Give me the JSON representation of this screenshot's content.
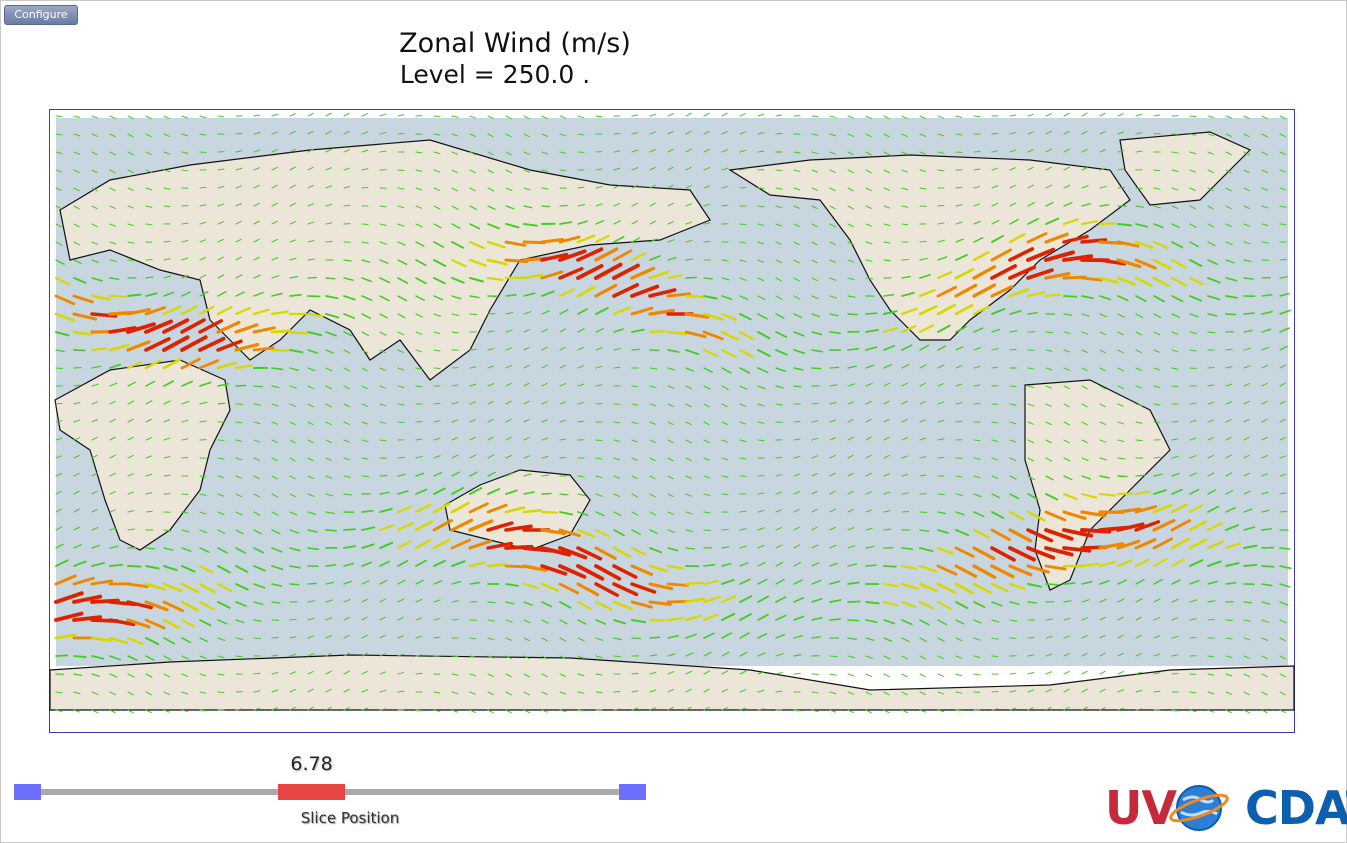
{
  "toolbar": {
    "configure_label": "Configure"
  },
  "plot": {
    "title": "Zonal Wind (m/s)",
    "level_text": "Level = 250.0 ."
  },
  "slider": {
    "value": "6.78",
    "label": "Slice Position",
    "position_fraction": 0.47
  },
  "logo": {
    "left": "UV",
    "right": "CDAT"
  },
  "colors": {
    "slider_handle": "#6e6eff",
    "slider_thumb": "#e84545",
    "slider_track": "#aaaaaa",
    "map_border": "#3a3ab8",
    "ocean": "#c8d6e0",
    "land": "#ece6d8",
    "vector_low": "#44cc22",
    "vector_mid": "#d8d800",
    "vector_high": "#dd2200"
  }
}
